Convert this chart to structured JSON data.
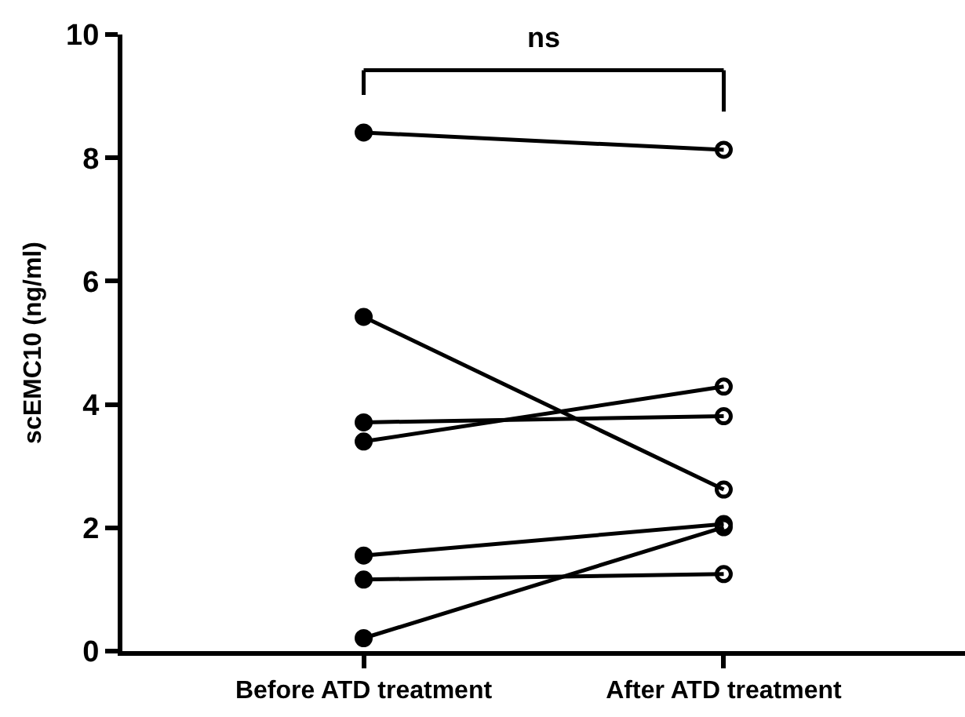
{
  "chart_data": {
    "type": "line",
    "categories": [
      "Before ATD treatment",
      "After ATD treatment"
    ],
    "ylabel": "scEMC10 (ng/ml)",
    "ylim": [
      0,
      10
    ],
    "yticks": [
      0,
      2,
      4,
      6,
      8,
      10
    ],
    "marker": "circle",
    "line_style": "solid",
    "annotations": [
      "ns"
    ],
    "series": [
      {
        "color": "#000000",
        "values": [
          8.41,
          8.13
        ]
      },
      {
        "color": "#000000",
        "values": [
          5.42,
          2.62
        ]
      },
      {
        "color": "#000000",
        "values": [
          3.71,
          3.81
        ]
      },
      {
        "color": "#000000",
        "values": [
          3.4,
          4.29
        ]
      },
      {
        "color": "#000000",
        "values": [
          1.55,
          2.06
        ]
      },
      {
        "color": "#000000",
        "values": [
          1.16,
          1.25
        ]
      },
      {
        "color": "#000000",
        "values": [
          0.21,
          2.01
        ]
      }
    ]
  }
}
